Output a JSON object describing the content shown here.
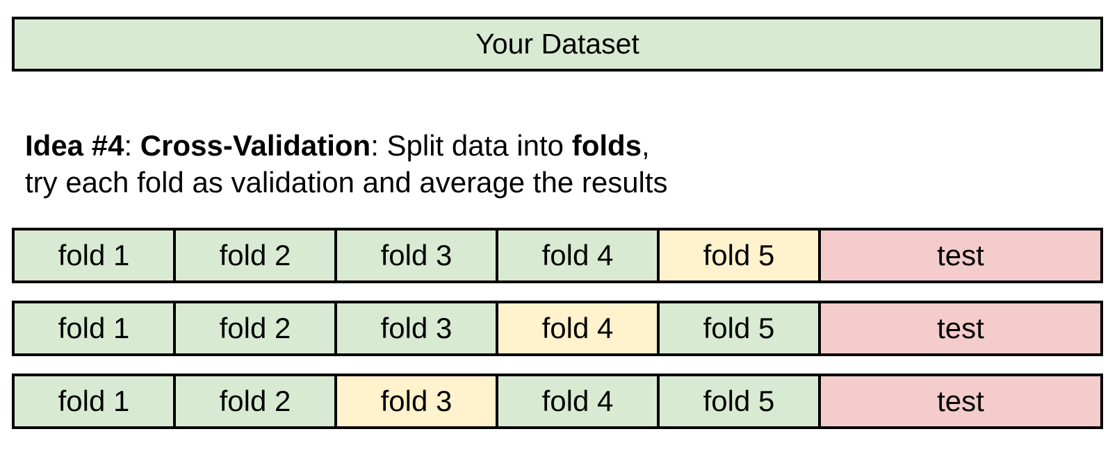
{
  "dataset": {
    "label": "Your Dataset",
    "color": "#d9ead3"
  },
  "caption": {
    "line1": {
      "idea": "Idea #4",
      "sep1": ": ",
      "method": "Cross-Validation",
      "text1": ": Split data into ",
      "folds_word": "folds",
      "text2": ","
    },
    "line2": "try each fold as validation and average the results"
  },
  "colors": {
    "train": "#d9ead3",
    "validation": "#fff2cc",
    "test": "#f4cccc",
    "border": "#000000"
  },
  "rows": [
    {
      "cells": [
        {
          "label": "fold 1",
          "role": "train"
        },
        {
          "label": "fold 2",
          "role": "train"
        },
        {
          "label": "fold 3",
          "role": "train"
        },
        {
          "label": "fold 4",
          "role": "train"
        },
        {
          "label": "fold 5",
          "role": "validation"
        },
        {
          "label": "test",
          "role": "test"
        }
      ]
    },
    {
      "cells": [
        {
          "label": "fold 1",
          "role": "train"
        },
        {
          "label": "fold 2",
          "role": "train"
        },
        {
          "label": "fold 3",
          "role": "train"
        },
        {
          "label": "fold 4",
          "role": "validation"
        },
        {
          "label": "fold 5",
          "role": "train"
        },
        {
          "label": "test",
          "role": "test"
        }
      ]
    },
    {
      "cells": [
        {
          "label": "fold 1",
          "role": "train"
        },
        {
          "label": "fold 2",
          "role": "train"
        },
        {
          "label": "fold 3",
          "role": "validation"
        },
        {
          "label": "fold 4",
          "role": "train"
        },
        {
          "label": "fold 5",
          "role": "train"
        },
        {
          "label": "test",
          "role": "test"
        }
      ]
    }
  ]
}
